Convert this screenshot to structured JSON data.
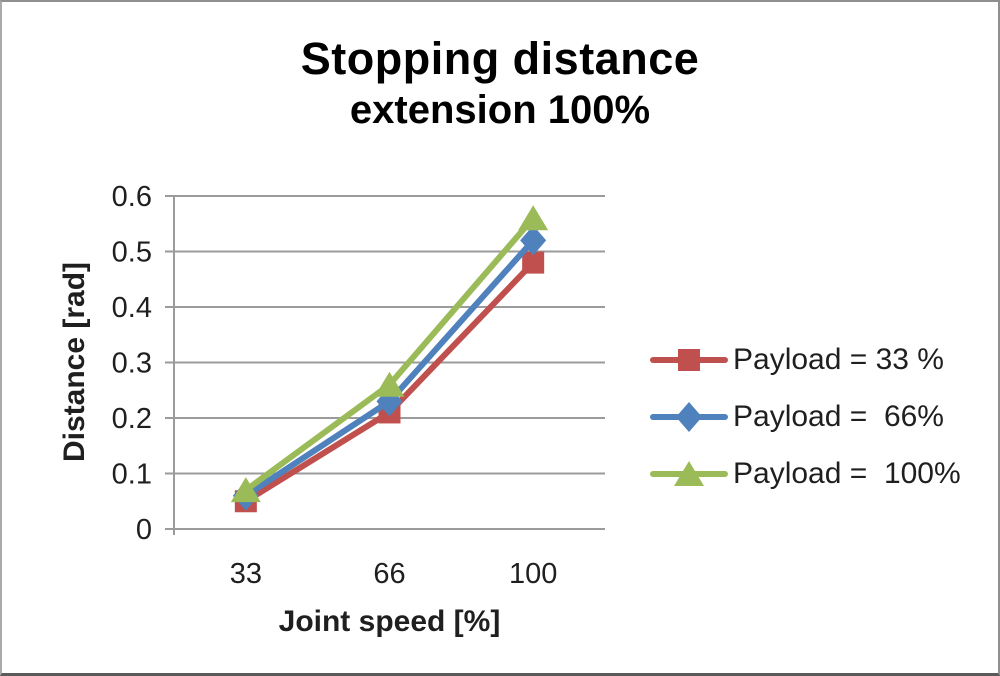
{
  "chart_data": {
    "type": "line",
    "title_lines": [
      "Stopping distance",
      "extension 100%"
    ],
    "title": "Stopping distance extension 100%",
    "categories": [
      "33",
      "66",
      "100"
    ],
    "x_values": [
      33,
      66,
      100
    ],
    "xlabel": "Joint speed [%]",
    "ylabel": "Distance [rad]",
    "ylim": [
      0,
      0.6
    ],
    "yticks": [
      "0",
      "0.1",
      "0.2",
      "0.3",
      "0.4",
      "0.5",
      "0.6"
    ],
    "grid": true,
    "legend_position": "right-center",
    "series": [
      {
        "name": "Payload = 33 %",
        "marker": "square",
        "color": "#C0504D",
        "values": [
          0.05,
          0.21,
          0.48
        ]
      },
      {
        "name": "Payload =  66%",
        "marker": "diamond",
        "color": "#4F81BD",
        "values": [
          0.06,
          0.23,
          0.52
        ]
      },
      {
        "name": "Payload =  100%",
        "marker": "triangle",
        "color": "#9BBB59",
        "values": [
          0.07,
          0.26,
          0.56
        ]
      }
    ],
    "colors": {
      "gridline": "#9B9B9B",
      "axis_text": "#1F1F1F",
      "title_text": "#000000"
    }
  }
}
